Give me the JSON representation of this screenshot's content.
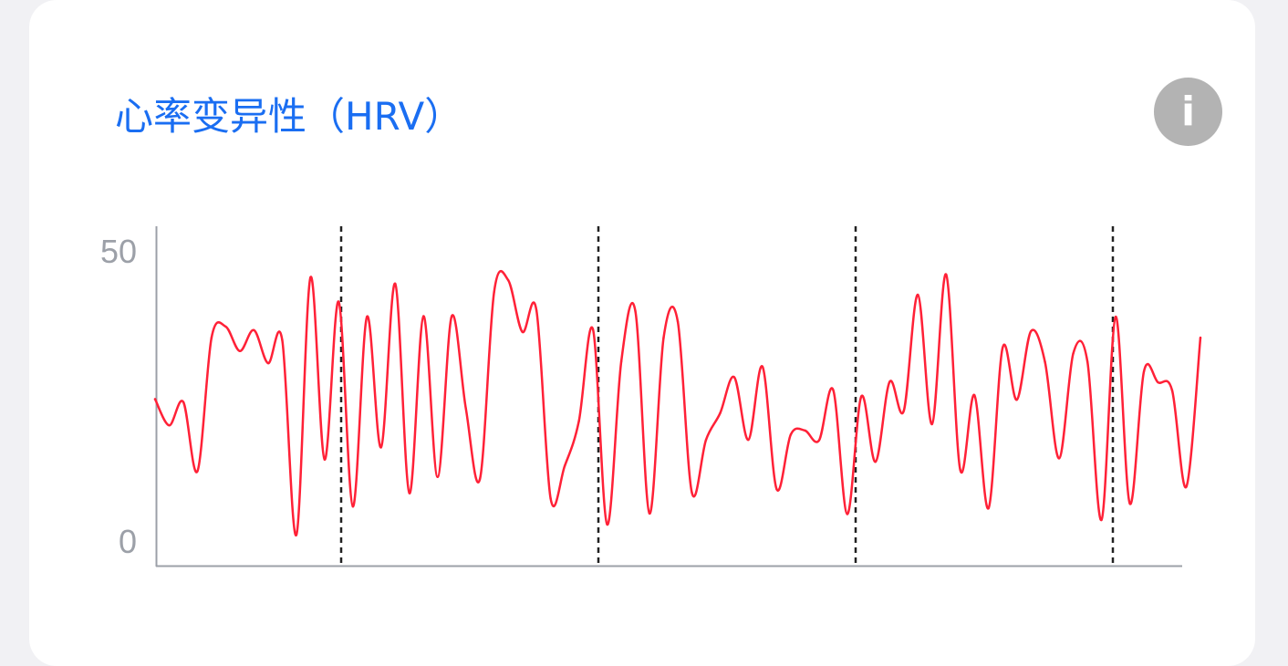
{
  "card": {
    "title": "心率变异性（HRV）",
    "info_icon": "info-icon",
    "info_glyph": "i"
  },
  "colors": {
    "title": "#1a6ef2",
    "line": "#ff2137",
    "axis": "#9ca0a8",
    "divider": "#222222",
    "info_button": "#b3b3b3"
  },
  "chart_data": {
    "type": "line",
    "title": "",
    "xlabel": "",
    "ylabel": "",
    "ylim": [
      0,
      50
    ],
    "y_ticks": [
      "50",
      "0"
    ],
    "grid": false,
    "legend": "none",
    "segment_dividers": 4,
    "series": [
      {
        "values": [
          24.6,
          20.1,
          24.1,
          12.2,
          35.2,
          37.1,
          32.9,
          36.5,
          30.8,
          34.8,
          1.2,
          45.6,
          14.2,
          41.4,
          6.1,
          38.8,
          16.3,
          44.5,
          8.4,
          38.9,
          11.2,
          38.9,
          23.0,
          10.9,
          43.1,
          45.1,
          36.2,
          39.9,
          7.5,
          13.1,
          20.8,
          36.6,
          3.0,
          31.1,
          39.8,
          4.9,
          35.2,
          38.0,
          8.5,
          17.6,
          22.2,
          28.4,
          17.6,
          30.2,
          9.1,
          18.5,
          19.2,
          17.5,
          26.2,
          4.8,
          25.1,
          13.8,
          27.6,
          22.6,
          42.6,
          20.3,
          46.1,
          12.4,
          25.3,
          5.8,
          33.5,
          24.5,
          36.3,
          31.0,
          14.4,
          32.5,
          31.1,
          3.8,
          38.8,
          6.6,
          29.4,
          27.5,
          26.1,
          9.5,
          35.2
        ]
      }
    ]
  }
}
